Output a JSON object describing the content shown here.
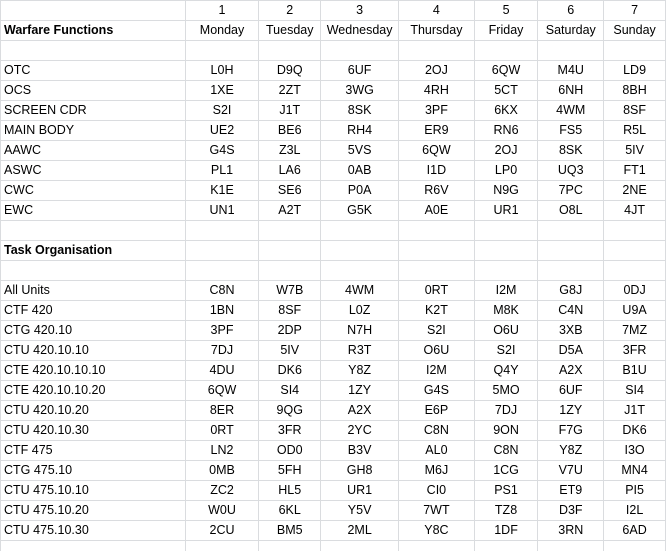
{
  "header_numbers": [
    "1",
    "2",
    "3",
    "4",
    "5",
    "6",
    "7"
  ],
  "section1": {
    "title": "Warfare Functions",
    "days": [
      "Monday",
      "Tuesday",
      "Wednesday",
      "Thursday",
      "Friday",
      "Saturday",
      "Sunday"
    ],
    "rows": [
      {
        "label": "OTC",
        "codes": [
          "L0H",
          "D9Q",
          "6UF",
          "2OJ",
          "6QW",
          "M4U",
          "LD9"
        ]
      },
      {
        "label": "OCS",
        "codes": [
          "1XE",
          "2ZT",
          "3WG",
          "4RH",
          "5CT",
          "6NH",
          "8BH"
        ]
      },
      {
        "label": "SCREEN CDR",
        "codes": [
          "S2I",
          "J1T",
          "8SK",
          "3PF",
          "6KX",
          "4WM",
          "8SF"
        ]
      },
      {
        "label": "MAIN BODY",
        "codes": [
          "UE2",
          "BE6",
          "RH4",
          "ER9",
          "RN6",
          "FS5",
          "R5L"
        ]
      },
      {
        "label": "AAWC",
        "codes": [
          "G4S",
          "Z3L",
          "5VS",
          "6QW",
          "2OJ",
          "8SK",
          "5IV"
        ]
      },
      {
        "label": "ASWC",
        "codes": [
          "PL1",
          "LA6",
          "0AB",
          "I1D",
          "LP0",
          "UQ3",
          "FT1"
        ]
      },
      {
        "label": "CWC",
        "codes": [
          "K1E",
          "SE6",
          "P0A",
          "R6V",
          "N9G",
          "7PC",
          "2NE"
        ]
      },
      {
        "label": "EWC",
        "codes": [
          "UN1",
          "A2T",
          "G5K",
          "A0E",
          "UR1",
          "O8L",
          "4JT"
        ]
      }
    ]
  },
  "section2": {
    "title": "Task Organisation",
    "rows": [
      {
        "label": "All Units",
        "codes": [
          "C8N",
          "W7B",
          "4WM",
          "0RT",
          "I2M",
          "G8J",
          "0DJ"
        ]
      },
      {
        "label": "CTF 420",
        "codes": [
          "1BN",
          "8SF",
          "L0Z",
          "K2T",
          "M8K",
          "C4N",
          "U9A"
        ]
      },
      {
        "label": "CTG 420.10",
        "codes": [
          "3PF",
          "2DP",
          "N7H",
          "S2I",
          "O6U",
          "3XB",
          "7MZ"
        ]
      },
      {
        "label": "CTU 420.10.10",
        "codes": [
          "7DJ",
          "5IV",
          "R3T",
          "O6U",
          "S2I",
          "D5A",
          "3FR"
        ]
      },
      {
        "label": "CTE 420.10.10.10",
        "codes": [
          "4DU",
          "DK6",
          "Y8Z",
          "I2M",
          "Q4Y",
          "A2X",
          "B1U"
        ]
      },
      {
        "label": "CTE 420.10.10.20",
        "codes": [
          "6QW",
          "SI4",
          "1ZY",
          "G4S",
          "5MO",
          "6UF",
          "SI4"
        ]
      },
      {
        "label": "CTU 420.10.20",
        "codes": [
          "8ER",
          "9QG",
          "A2X",
          "E6P",
          "7DJ",
          "1ZY",
          "J1T"
        ]
      },
      {
        "label": "CTU 420.10.30",
        "codes": [
          "0RT",
          "3FR",
          "2YC",
          "C8N",
          "9ON",
          "F7G",
          "DK6"
        ]
      },
      {
        "label": "CTF 475",
        "codes": [
          "LN2",
          "OD0",
          "B3V",
          "AL0",
          "C8N",
          "Y8Z",
          "I3O"
        ]
      },
      {
        "label": "CTG 475.10",
        "codes": [
          "0MB",
          "5FH",
          "GH8",
          "M6J",
          "1CG",
          "V7U",
          "MN4"
        ]
      },
      {
        "label": "CTU 475.10.10",
        "codes": [
          "ZC2",
          "HL5",
          "UR1",
          "CI0",
          "PS1",
          "ET9",
          "PI5"
        ]
      },
      {
        "label": "CTU 475.10.20",
        "codes": [
          "W0U",
          "6KL",
          "Y5V",
          "7WT",
          "TZ8",
          "D3F",
          "I2L"
        ]
      },
      {
        "label": "CTU 475.10.30",
        "codes": [
          "2CU",
          "BM5",
          "2ML",
          "Y8C",
          "1DF",
          "3RN",
          "6AD"
        ]
      }
    ]
  }
}
